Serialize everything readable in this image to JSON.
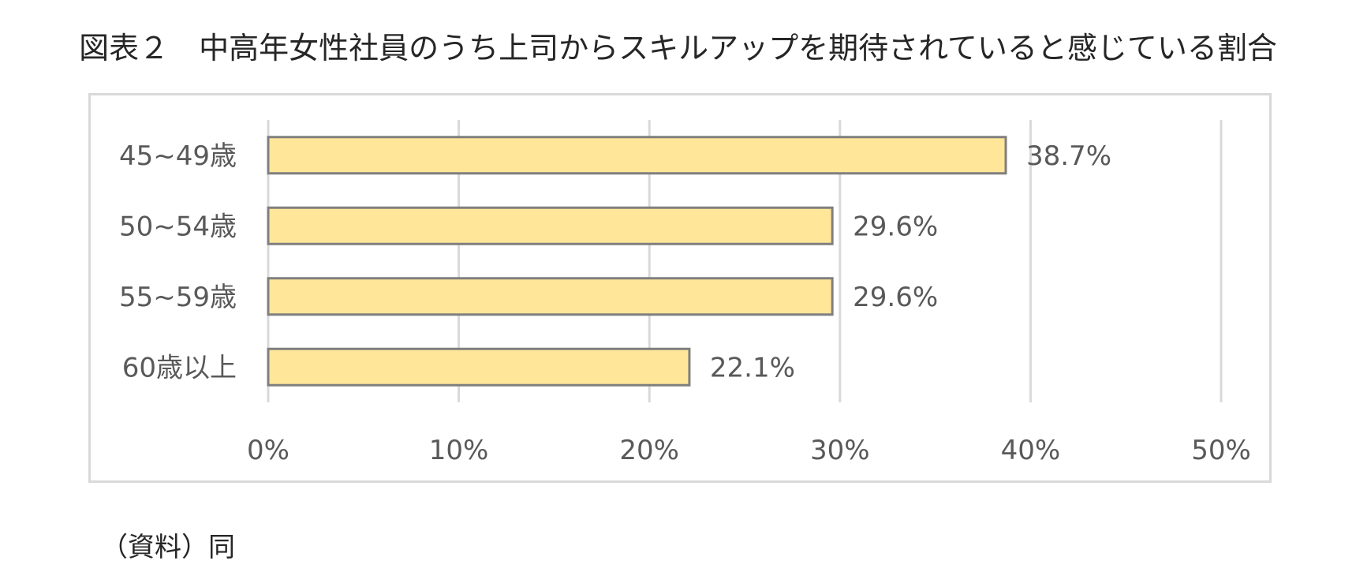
{
  "title": "図表２　中高年女性社員のうち上司からスキルアップを期待されていると感じている割合",
  "source_note": "（資料）同",
  "colors": {
    "bar_fill": "#ffe699",
    "bar_stroke": "#7f7f7f",
    "grid": "#d9d9d9",
    "frame": "#d9d9d9",
    "label_text": "#595959"
  },
  "chart_data": {
    "type": "bar",
    "orientation": "horizontal",
    "categories": [
      "45~49歳",
      "50~54歳",
      "55~59歳",
      "60歳以上"
    ],
    "values": [
      38.7,
      29.6,
      29.6,
      22.1
    ],
    "data_labels": [
      "38.7%",
      "29.6%",
      "29.6%",
      "22.1%"
    ],
    "x_ticks": [
      0,
      10,
      20,
      30,
      40,
      50
    ],
    "x_tick_labels": [
      "0%",
      "10%",
      "20%",
      "30%",
      "40%",
      "50%"
    ],
    "xlim": [
      0,
      50
    ],
    "xlabel": "",
    "ylabel": "",
    "grid": true,
    "legend": "none"
  }
}
